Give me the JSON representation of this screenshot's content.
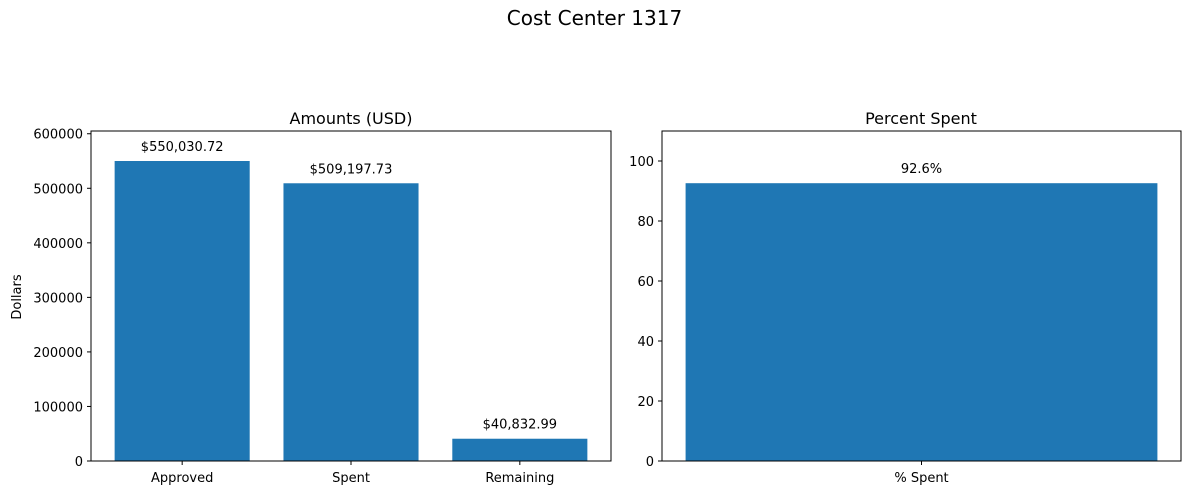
{
  "figure": {
    "title": "Cost Center 1317"
  },
  "chart_data": [
    {
      "type": "bar",
      "title": "Amounts (USD)",
      "xlabel": "",
      "ylabel": "Dollars",
      "categories": [
        "Approved",
        "Spent",
        "Remaining"
      ],
      "values": [
        550030.72,
        509197.73,
        40832.99
      ],
      "data_labels": [
        "$550,030.72",
        "$509,197.73",
        "$40,832.99"
      ],
      "ylim": [
        0,
        605034
      ],
      "yticks": [
        0,
        100000,
        200000,
        300000,
        400000,
        500000,
        600000
      ],
      "color": "#1f77b4",
      "grid": false
    },
    {
      "type": "bar",
      "title": "Percent Spent",
      "xlabel": "",
      "ylabel": "",
      "categories": [
        "% Spent"
      ],
      "values": [
        92.6
      ],
      "data_labels": [
        "92.6%"
      ],
      "ylim": [
        0,
        110
      ],
      "yticks": [
        0,
        20,
        40,
        60,
        80,
        100
      ],
      "color": "#1f77b4",
      "grid": false
    }
  ]
}
